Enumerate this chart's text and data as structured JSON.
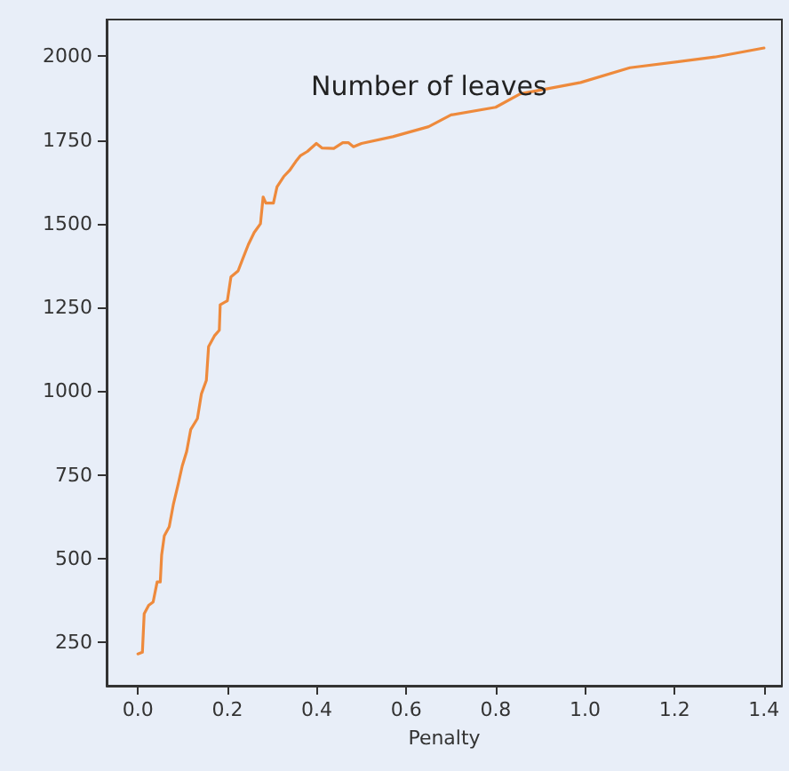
{
  "chart_data": {
    "type": "line",
    "title": "Number of leaves",
    "xlabel": "Penalty",
    "x": [
      0,
      0.01,
      0.014,
      0.024,
      0.034,
      0.043,
      0.05,
      0.053,
      0.059,
      0.07,
      0.079,
      0.09,
      0.099,
      0.109,
      0.118,
      0.133,
      0.142,
      0.153,
      0.158,
      0.171,
      0.182,
      0.184,
      0.2,
      0.208,
      0.224,
      0.234,
      0.247,
      0.26,
      0.274,
      0.28,
      0.286,
      0.303,
      0.311,
      0.326,
      0.339,
      0.353,
      0.363,
      0.379,
      0.399,
      0.412,
      0.438,
      0.458,
      0.471,
      0.482,
      0.5,
      0.57,
      0.65,
      0.7,
      0.8,
      0.855,
      0.99,
      1.1,
      1.29,
      1.4
    ],
    "series": [
      {
        "color": "#ee8a3c",
        "values": [
          215,
          220,
          335,
          360,
          370,
          430,
          430,
          510,
          568,
          595,
          660,
          722,
          776,
          820,
          885,
          918,
          992,
          1032,
          1133,
          1165,
          1182,
          1258,
          1270,
          1341,
          1359,
          1394,
          1438,
          1474,
          1500,
          1580,
          1562,
          1562,
          1610,
          1641,
          1659,
          1686,
          1703,
          1716,
          1740,
          1726,
          1725,
          1742,
          1742,
          1730,
          1740,
          1760,
          1790,
          1825,
          1848,
          1888,
          1922,
          1966,
          1998,
          2025
        ]
      }
    ],
    "xlim": [
      -0.07,
      1.44
    ],
    "ylim": [
      120,
      2110
    ],
    "xticks": [
      {
        "value": 0,
        "label": "0.0"
      },
      0.2,
      0.4,
      0.6,
      0.8,
      {
        "value": 1,
        "label": "1.0"
      },
      1.2,
      1.4
    ],
    "yticks": [
      250,
      500,
      750,
      1000,
      1250,
      1500,
      1750,
      2000
    ],
    "grid": false,
    "marker": "none",
    "line_style": "solid"
  }
}
